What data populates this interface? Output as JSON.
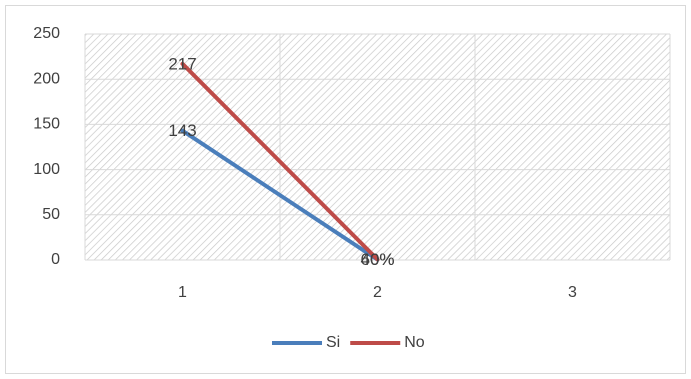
{
  "chart_data": {
    "type": "line",
    "categories": [
      "1",
      "2",
      "3"
    ],
    "series": [
      {
        "name": "Si",
        "color": "#4a7ebb",
        "values": [
          143,
          0.4,
          null
        ],
        "value_labels": [
          "143",
          "40%",
          null
        ]
      },
      {
        "name": "No",
        "color": "#be4b48",
        "values": [
          217,
          0.6,
          null
        ],
        "value_labels": [
          "217",
          "60%",
          null
        ]
      }
    ],
    "ylim": [
      0,
      250
    ],
    "yticks": [
      0,
      50,
      100,
      150,
      200,
      250
    ],
    "grid": true,
    "legend": "bottom"
  }
}
